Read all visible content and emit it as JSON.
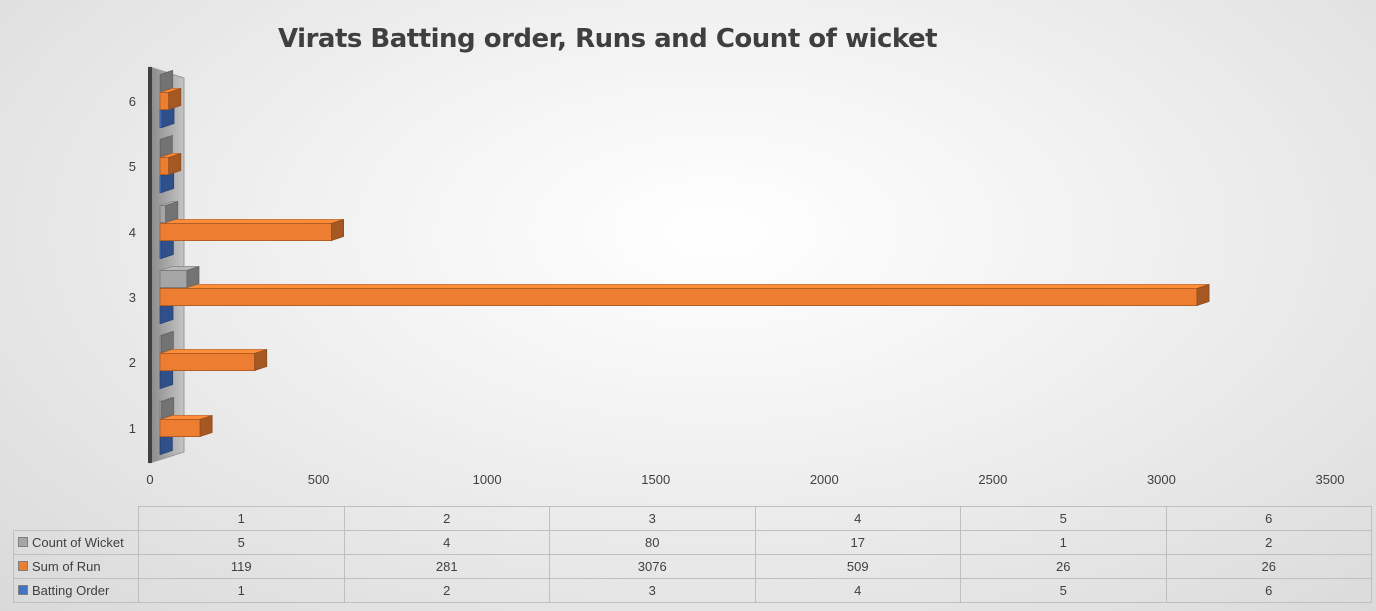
{
  "chart_data": {
    "type": "bar",
    "orientation": "horizontal",
    "style": "3d-clustered",
    "title": "Virats Batting order, Runs and Count of wicket",
    "categories": [
      "1",
      "2",
      "3",
      "4",
      "5",
      "6"
    ],
    "series": [
      {
        "name": "Count of Wicket",
        "values": [
          5,
          4,
          80,
          17,
          1,
          2
        ],
        "color": "#a5a5a5"
      },
      {
        "name": "Sum of Run",
        "values": [
          119,
          281,
          3076,
          509,
          26,
          26
        ],
        "color": "#ed7d31"
      },
      {
        "name": "Batting Order",
        "values": [
          1,
          2,
          3,
          4,
          5,
          6
        ],
        "color": "#4472c4"
      }
    ],
    "x_ticks": [
      "0",
      "500",
      "1000",
      "1500",
      "2000",
      "2500",
      "3000",
      "3500"
    ],
    "xlim": [
      0,
      3500
    ],
    "grid": false,
    "legend": "data-table-below"
  }
}
